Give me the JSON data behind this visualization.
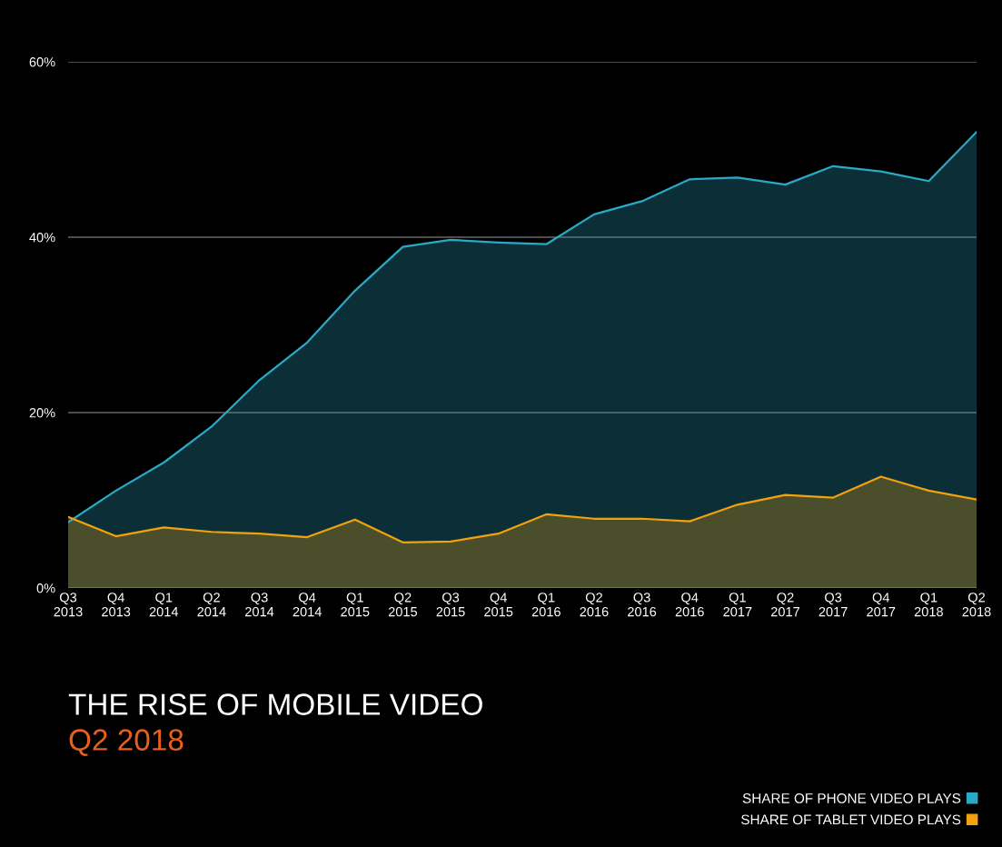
{
  "chart_data": {
    "type": "area",
    "title": "THE RISE OF MOBILE VIDEO",
    "subtitle": "Q2 2018",
    "categories": [
      "Q3\n2013",
      "Q4\n2013",
      "Q1\n2014",
      "Q2\n2014",
      "Q3\n2014",
      "Q4\n2014",
      "Q1\n2015",
      "Q2\n2015",
      "Q3\n2015",
      "Q4\n2015",
      "Q1\n2016",
      "Q2\n2016",
      "Q3\n2016",
      "Q4\n2016",
      "Q1\n2017",
      "Q2\n2017",
      "Q3\n2017",
      "Q4\n2017",
      "Q1\n2018",
      "Q2\n2018"
    ],
    "series": [
      {
        "name": "SHARE OF PHONE VIDEO PLAYS",
        "color": "#2aa9c6",
        "values": [
          7.5,
          11.1,
          14.3,
          18.4,
          23.7,
          28.0,
          33.9,
          38.9,
          39.7,
          39.4,
          39.2,
          42.6,
          44.1,
          46.6,
          46.8,
          46.0,
          48.1,
          47.5,
          46.4,
          52.0
        ]
      },
      {
        "name": "SHARE OF TABLET VIDEO PLAYS",
        "color": "#f2a20c",
        "values": [
          8.1,
          5.9,
          6.9,
          6.4,
          6.2,
          5.8,
          7.8,
          5.2,
          5.3,
          6.2,
          8.4,
          7.9,
          7.9,
          7.6,
          9.5,
          10.6,
          10.3,
          12.7,
          11.1,
          10.1
        ]
      }
    ],
    "ylim": [
      0,
      60
    ],
    "yticks": [
      {
        "value": 0,
        "label": "0%"
      },
      {
        "value": 20,
        "label": "20%"
      },
      {
        "value": 40,
        "label": "40%"
      },
      {
        "value": 60,
        "label": "60%"
      }
    ],
    "grid": "y",
    "legend": "bottom right"
  }
}
